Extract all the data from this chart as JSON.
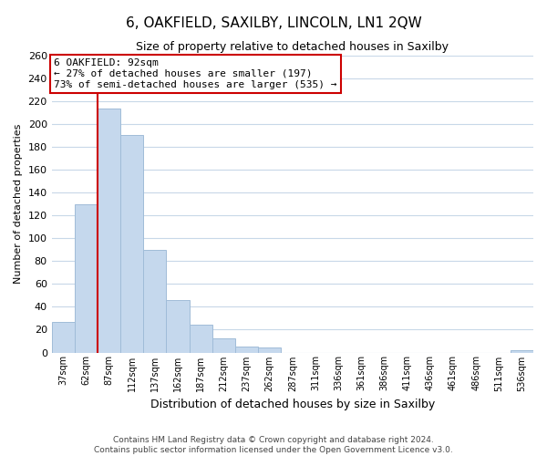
{
  "title": "6, OAKFIELD, SAXILBY, LINCOLN, LN1 2QW",
  "subtitle": "Size of property relative to detached houses in Saxilby",
  "xlabel": "Distribution of detached houses by size in Saxilby",
  "ylabel": "Number of detached properties",
  "bar_labels": [
    "37sqm",
    "62sqm",
    "87sqm",
    "112sqm",
    "137sqm",
    "162sqm",
    "187sqm",
    "212sqm",
    "237sqm",
    "262sqm",
    "287sqm",
    "311sqm",
    "336sqm",
    "361sqm",
    "386sqm",
    "411sqm",
    "436sqm",
    "461sqm",
    "486sqm",
    "511sqm",
    "536sqm"
  ],
  "bar_values": [
    27,
    130,
    213,
    190,
    90,
    46,
    24,
    12,
    5,
    4,
    0,
    0,
    0,
    0,
    0,
    0,
    0,
    0,
    0,
    0,
    2
  ],
  "bar_color": "#c5d8ed",
  "bar_edge_color": "#a0bcd8",
  "vline_index": 2,
  "vline_color": "#cc0000",
  "ylim": [
    0,
    260
  ],
  "yticks": [
    0,
    20,
    40,
    60,
    80,
    100,
    120,
    140,
    160,
    180,
    200,
    220,
    240,
    260
  ],
  "annotation_line1": "6 OAKFIELD: 92sqm",
  "annotation_line2": "← 27% of detached houses are smaller (197)",
  "annotation_line3": "73% of semi-detached houses are larger (535) →",
  "annotation_box_color": "#ffffff",
  "annotation_box_edge": "#cc0000",
  "footer_line1": "Contains HM Land Registry data © Crown copyright and database right 2024.",
  "footer_line2": "Contains public sector information licensed under the Open Government Licence v3.0.",
  "background_color": "#ffffff",
  "grid_color": "#c8d8e8"
}
